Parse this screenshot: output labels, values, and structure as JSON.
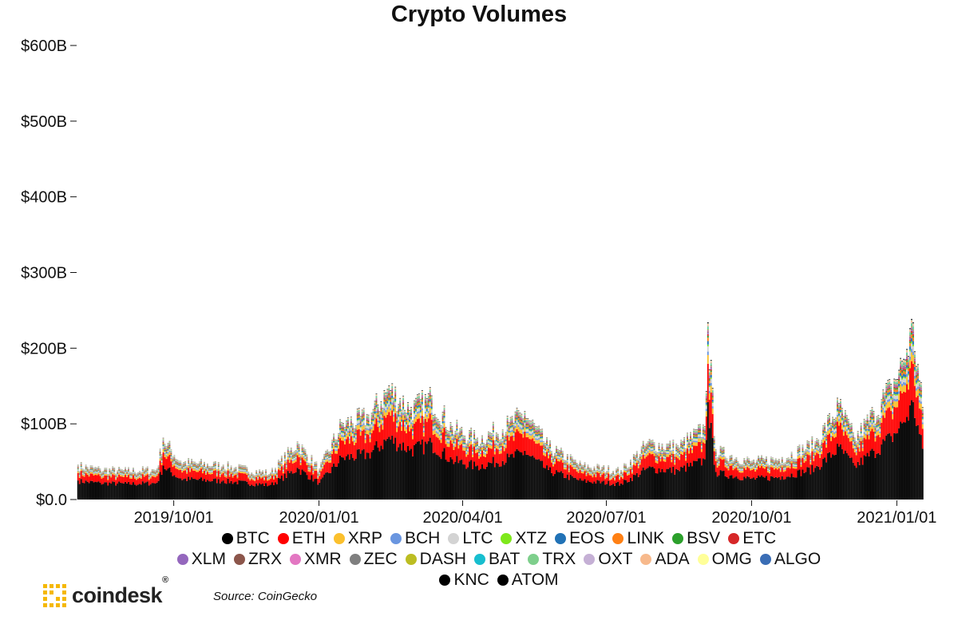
{
  "chart_data": {
    "type": "bar",
    "stacked": true,
    "title": "Crypto Volumes",
    "xlabel": "",
    "ylabel": "",
    "ylim": [
      0,
      600
    ],
    "y_unit": "billions USD",
    "y_ticks": [
      "$0.0",
      "$100B",
      "$200B",
      "$300B",
      "$400B",
      "$500B",
      "$600B"
    ],
    "x_ticks": [
      "2019/10/01",
      "2020/01/01",
      "2020/04/01",
      "2020/07/01",
      "2020/10/01",
      "2021/01/01"
    ],
    "date_range": [
      "2019-08-01",
      "2021-01-17"
    ],
    "total_volume_keypoints": [
      {
        "date": "2019-08-01",
        "total": 45
      },
      {
        "date": "2019-08-15",
        "total": 40
      },
      {
        "date": "2019-09-01",
        "total": 38
      },
      {
        "date": "2019-09-20",
        "total": 40
      },
      {
        "date": "2019-09-24",
        "total": 80
      },
      {
        "date": "2019-10-05",
        "total": 50
      },
      {
        "date": "2019-11-01",
        "total": 45
      },
      {
        "date": "2019-12-01",
        "total": 35
      },
      {
        "date": "2019-12-18",
        "total": 75
      },
      {
        "date": "2020-01-01",
        "total": 40
      },
      {
        "date": "2020-01-15",
        "total": 100
      },
      {
        "date": "2020-02-01",
        "total": 110
      },
      {
        "date": "2020-02-14",
        "total": 148
      },
      {
        "date": "2020-02-28",
        "total": 120
      },
      {
        "date": "2020-03-12",
        "total": 135
      },
      {
        "date": "2020-03-25",
        "total": 95
      },
      {
        "date": "2020-04-10",
        "total": 80
      },
      {
        "date": "2020-04-30",
        "total": 100
      },
      {
        "date": "2020-05-10",
        "total": 115
      },
      {
        "date": "2020-05-25",
        "total": 70
      },
      {
        "date": "2020-06-15",
        "total": 45
      },
      {
        "date": "2020-07-10",
        "total": 38
      },
      {
        "date": "2020-07-27",
        "total": 75
      },
      {
        "date": "2020-08-15",
        "total": 70
      },
      {
        "date": "2020-09-01",
        "total": 95
      },
      {
        "date": "2020-09-03",
        "total": 230
      },
      {
        "date": "2020-09-08",
        "total": 65
      },
      {
        "date": "2020-10-01",
        "total": 50
      },
      {
        "date": "2020-10-20",
        "total": 55
      },
      {
        "date": "2020-11-10",
        "total": 75
      },
      {
        "date": "2020-11-25",
        "total": 125
      },
      {
        "date": "2020-12-05",
        "total": 80
      },
      {
        "date": "2020-12-17",
        "total": 115
      },
      {
        "date": "2020-12-28",
        "total": 150
      },
      {
        "date": "2021-01-04",
        "total": 180
      },
      {
        "date": "2021-01-11",
        "total": 230
      },
      {
        "date": "2021-01-17",
        "total": 120
      }
    ],
    "series_share": {
      "BTC": 0.56,
      "ETH": 0.22,
      "XRP": 0.05,
      "BCH": 0.02,
      "LTC": 0.03,
      "XTZ": 0.01,
      "EOS": 0.02,
      "LINK": 0.02,
      "BSV": 0.01,
      "ETC": 0.01,
      "XLM": 0.01,
      "ZRX": 0.005,
      "XMR": 0.005,
      "ZEC": 0.005,
      "DASH": 0.005,
      "BAT": 0.005,
      "TRX": 0.01,
      "OXT": 0.003,
      "ADA": 0.01,
      "OMG": 0.003,
      "ALGO": 0.002,
      "KNC": 0.002,
      "ATOM": 0.003
    },
    "legend": {
      "placement": "bottom",
      "rows": [
        [
          {
            "name": "BTC",
            "color": "#000000"
          },
          {
            "name": "ETH",
            "color": "#ff0000"
          },
          {
            "name": "XRP",
            "color": "#fbc02d"
          },
          {
            "name": "BCH",
            "color": "#6a96e0"
          },
          {
            "name": "LTC",
            "color": "#d3d3d3"
          },
          {
            "name": "XTZ",
            "color": "#7ee81b"
          },
          {
            "name": "EOS",
            "color": "#2172b6"
          },
          {
            "name": "LINK",
            "color": "#ff8014"
          },
          {
            "name": "BSV",
            "color": "#2ca02c"
          },
          {
            "name": "ETC",
            "color": "#d62728"
          }
        ],
        [
          {
            "name": "XLM",
            "color": "#9467bd"
          },
          {
            "name": "ZRX",
            "color": "#8c564b"
          },
          {
            "name": "XMR",
            "color": "#e377c2"
          },
          {
            "name": "ZEC",
            "color": "#7f7f7f"
          },
          {
            "name": "DASH",
            "color": "#bcbd22"
          },
          {
            "name": "BAT",
            "color": "#17becf"
          },
          {
            "name": "TRX",
            "color": "#7ecf8c"
          },
          {
            "name": "OXT",
            "color": "#c5b0d5"
          },
          {
            "name": "ADA",
            "color": "#f7b98c"
          },
          {
            "name": "OMG",
            "color": "#ffff99"
          },
          {
            "name": "ALGO",
            "color": "#3a6db5"
          }
        ],
        [
          {
            "name": "KNC",
            "color": "#000000"
          },
          {
            "name": "ATOM",
            "color": "#000000"
          }
        ]
      ]
    },
    "grid": false
  },
  "brand": {
    "name": "coindesk",
    "reg": "®",
    "logo_color": "#f5b800"
  },
  "source": "Source: CoinGecko"
}
